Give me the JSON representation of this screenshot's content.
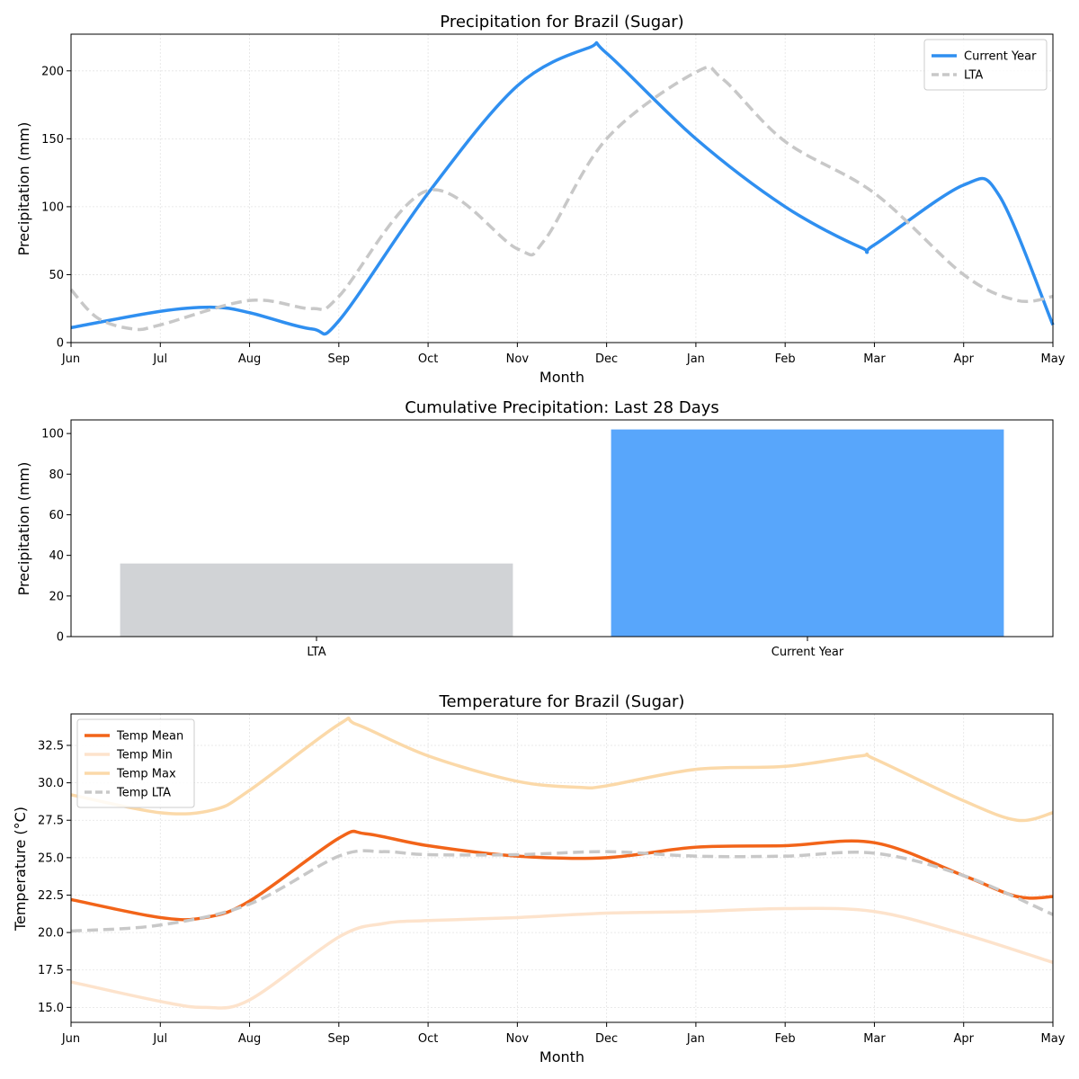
{
  "colors": {
    "current": "#2f8ff0",
    "lta": "#c8c8c8",
    "bar_lta": "#d1d3d6",
    "bar_current": "#58a6fb",
    "temp_mean": "#f26419",
    "temp_min": "#fde3cc",
    "temp_max": "#fbd9a9",
    "temp_lta": "#c8c8c8"
  },
  "chart_data": [
    {
      "type": "line",
      "title": "Precipitation for Brazil (Sugar)",
      "xlabel": "Month",
      "ylabel": "Precipitation (mm)",
      "categories": [
        "Jun",
        "Jul",
        "Aug",
        "Sep",
        "Oct",
        "Nov",
        "Dec",
        "Jan",
        "Feb",
        "Mar",
        "Apr",
        "May"
      ],
      "ylim": [
        0,
        227
      ],
      "yticks": [
        0,
        50,
        100,
        150,
        200
      ],
      "grid": true,
      "legend_position": "top-right",
      "series": [
        {
          "name": "Current Year",
          "style": "solid",
          "points": [
            [
              0,
              11
            ],
            [
              1,
              23
            ],
            [
              1.6,
              26
            ],
            [
              2,
              22
            ],
            [
              2.7,
              10
            ],
            [
              3,
              16
            ],
            [
              4,
              110
            ],
            [
              5,
              189
            ],
            [
              5.8,
              217
            ],
            [
              6,
              213
            ],
            [
              7,
              150
            ],
            [
              8,
              100
            ],
            [
              8.85,
              70
            ],
            [
              9,
              72
            ],
            [
              10,
              116
            ],
            [
              10.4,
              108
            ],
            [
              11,
              13
            ]
          ]
        },
        {
          "name": "LTA",
          "style": "dashed",
          "points": [
            [
              0,
              39
            ],
            [
              0.3,
              18
            ],
            [
              0.7,
              10
            ],
            [
              1,
              13
            ],
            [
              2,
              31
            ],
            [
              2.7,
              25
            ],
            [
              3,
              34
            ],
            [
              4,
              112
            ],
            [
              5,
              69
            ],
            [
              5.3,
              75
            ],
            [
              6,
              150
            ],
            [
              7,
              199
            ],
            [
              7.3,
              194
            ],
            [
              8,
              148
            ],
            [
              9,
              110
            ],
            [
              10,
              50
            ],
            [
              10.6,
              31
            ],
            [
              11,
              34
            ]
          ]
        }
      ]
    },
    {
      "type": "bar",
      "title": "Cumulative Precipitation: Last 28 Days",
      "ylabel": "Precipitation (mm)",
      "categories": [
        "LTA",
        "Current Year"
      ],
      "values": [
        36,
        102
      ],
      "ylim": [
        0,
        106.7
      ],
      "yticks": [
        0,
        20,
        40,
        60,
        80,
        100
      ]
    },
    {
      "type": "line",
      "title": "Temperature for Brazil (Sugar)",
      "xlabel": "Month",
      "ylabel": "Temperature (°C)",
      "categories": [
        "Jun",
        "Jul",
        "Aug",
        "Sep",
        "Oct",
        "Nov",
        "Dec",
        "Jan",
        "Feb",
        "Mar",
        "Apr",
        "May"
      ],
      "ylim": [
        14.0,
        34.6
      ],
      "yticks": [
        15.0,
        17.5,
        20.0,
        22.5,
        25.0,
        27.5,
        30.0,
        32.5
      ],
      "grid": true,
      "legend_position": "top-left",
      "series": [
        {
          "name": "Temp Mean",
          "style": "solid",
          "points": [
            [
              0,
              22.2
            ],
            [
              1,
              21.0
            ],
            [
              1.5,
              21.0
            ],
            [
              2,
              22.1
            ],
            [
              3,
              26.3
            ],
            [
              3.3,
              26.6
            ],
            [
              4,
              25.8
            ],
            [
              5,
              25.1
            ],
            [
              6,
              25.0
            ],
            [
              7,
              25.7
            ],
            [
              8,
              25.8
            ],
            [
              9,
              26.0
            ],
            [
              10,
              23.8
            ],
            [
              10.6,
              22.4
            ],
            [
              11,
              22.4
            ]
          ]
        },
        {
          "name": "Temp Min",
          "style": "solid",
          "points": [
            [
              0,
              16.7
            ],
            [
              1,
              15.4
            ],
            [
              1.5,
              15.0
            ],
            [
              2,
              15.5
            ],
            [
              3,
              19.7
            ],
            [
              3.5,
              20.6
            ],
            [
              4,
              20.8
            ],
            [
              5,
              21.0
            ],
            [
              6,
              21.3
            ],
            [
              7,
              21.4
            ],
            [
              8,
              21.6
            ],
            [
              9,
              21.4
            ],
            [
              10,
              19.9
            ],
            [
              11,
              18.0
            ]
          ]
        },
        {
          "name": "Temp Max",
          "style": "solid",
          "points": [
            [
              0,
              29.2
            ],
            [
              1,
              28.0
            ],
            [
              1.6,
              28.2
            ],
            [
              2,
              29.5
            ],
            [
              3,
              33.9
            ],
            [
              3.2,
              33.9
            ],
            [
              4,
              31.8
            ],
            [
              5,
              30.1
            ],
            [
              5.7,
              29.7
            ],
            [
              6,
              29.8
            ],
            [
              7,
              30.9
            ],
            [
              8,
              31.1
            ],
            [
              8.85,
              31.8
            ],
            [
              9,
              31.6
            ],
            [
              10,
              28.8
            ],
            [
              10.6,
              27.5
            ],
            [
              11,
              28.0
            ]
          ]
        },
        {
          "name": "Temp LTA",
          "style": "dashed",
          "points": [
            [
              0,
              20.1
            ],
            [
              1,
              20.5
            ],
            [
              2,
              21.9
            ],
            [
              3,
              25.1
            ],
            [
              3.5,
              25.4
            ],
            [
              4,
              25.2
            ],
            [
              5,
              25.2
            ],
            [
              6,
              25.4
            ],
            [
              7,
              25.1
            ],
            [
              8,
              25.1
            ],
            [
              9,
              25.3
            ],
            [
              10,
              23.8
            ],
            [
              11,
              21.2
            ]
          ]
        }
      ]
    }
  ]
}
